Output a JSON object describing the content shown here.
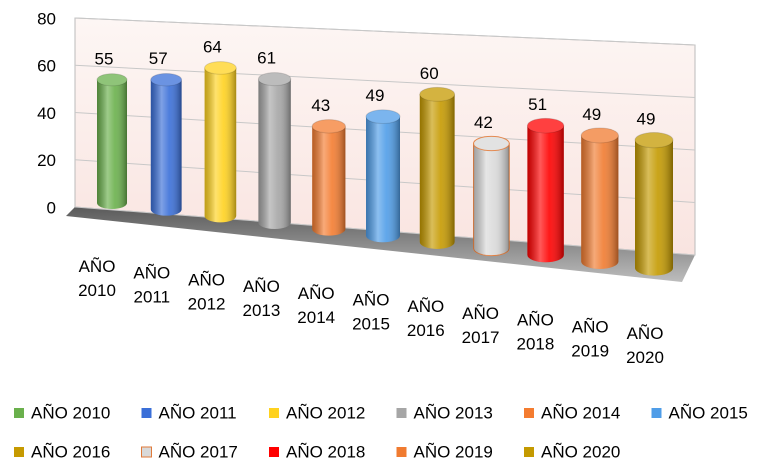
{
  "chart_data": {
    "type": "bar3d",
    "series": [
      {
        "name": "AÑO 2010",
        "color": "#6ab04c",
        "value": 55
      },
      {
        "name": "AÑO 2011",
        "color": "#3a6fd8",
        "value": 57
      },
      {
        "name": "AÑO 2012",
        "color": "#ffd21f",
        "value": 64
      },
      {
        "name": "AÑO 2013",
        "color": "#a6a6a6",
        "value": 61
      },
      {
        "name": "AÑO 2014",
        "color": "#f47c30",
        "value": 43
      },
      {
        "name": "AÑO 2015",
        "color": "#4f9de8",
        "value": 49
      },
      {
        "name": "AÑO 2016",
        "color": "#c69a00",
        "value": 60
      },
      {
        "name": "AÑO 2017",
        "color": "#d9d9d9",
        "value": 42
      },
      {
        "name": "AÑO 2018",
        "color": "#ff0000",
        "value": 51
      },
      {
        "name": "AÑO 2019",
        "color": "#f07b30",
        "value": 49
      },
      {
        "name": "AÑO 2020",
        "color": "#c49a00",
        "value": 49
      }
    ],
    "ylim": [
      0,
      80
    ],
    "yticks": [
      0,
      20,
      40,
      60,
      80
    ],
    "grid": true,
    "legend": "bottom"
  }
}
